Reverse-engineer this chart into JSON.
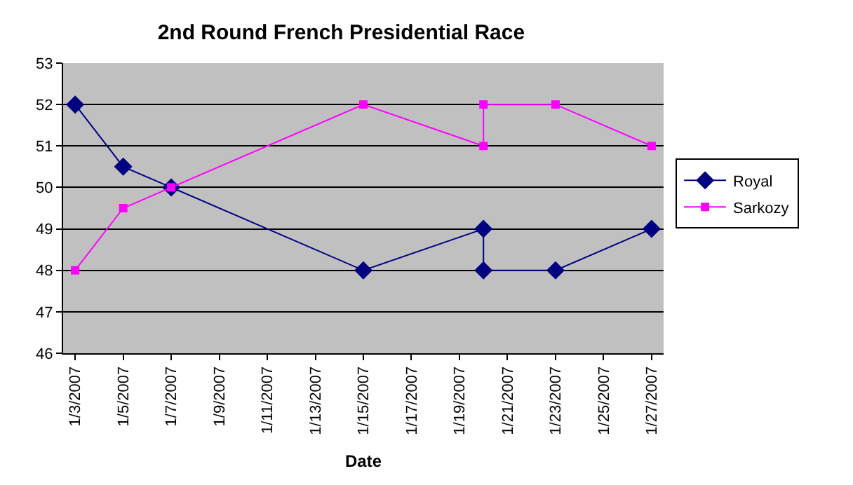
{
  "chart_data": {
    "type": "line",
    "title": "2nd Round French Presidential Race",
    "xlabel": "Date",
    "x": [
      "2007-01-03",
      "2007-01-05",
      "2007-01-07",
      "2007-01-15",
      "2007-01-20",
      "2007-01-20",
      "2007-01-23",
      "2007-01-27"
    ],
    "series": [
      {
        "name": "Royal",
        "color": "#000080",
        "marker": "diamond",
        "values": [
          52,
          50.5,
          50,
          48,
          49,
          48,
          48,
          49
        ]
      },
      {
        "name": "Sarkozy",
        "color": "#ff00ff",
        "marker": "square",
        "values": [
          48,
          49.5,
          50,
          52,
          51,
          52,
          52,
          51
        ]
      }
    ],
    "xlim": [
      "2007-01-02T12:00",
      "2007-01-27T12:00"
    ],
    "xticks": [
      {
        "value": "2007-01-03",
        "label": "1/3/2007"
      },
      {
        "value": "2007-01-05",
        "label": "1/5/2007"
      },
      {
        "value": "2007-01-07",
        "label": "1/7/2007"
      },
      {
        "value": "2007-01-09",
        "label": "1/9/2007"
      },
      {
        "value": "2007-01-11",
        "label": "1/11/2007"
      },
      {
        "value": "2007-01-13",
        "label": "1/13/2007"
      },
      {
        "value": "2007-01-15",
        "label": "1/15/2007"
      },
      {
        "value": "2007-01-17",
        "label": "1/17/2007"
      },
      {
        "value": "2007-01-19",
        "label": "1/19/2007"
      },
      {
        "value": "2007-01-21",
        "label": "1/21/2007"
      },
      {
        "value": "2007-01-23",
        "label": "1/23/2007"
      },
      {
        "value": "2007-01-25",
        "label": "1/25/2007"
      },
      {
        "value": "2007-01-27",
        "label": "1/27/2007"
      }
    ],
    "ylim": [
      46,
      53
    ],
    "yticks": [
      46,
      47,
      48,
      49,
      50,
      51,
      52,
      53
    ],
    "grid": "y",
    "legend": "right",
    "line_style": "solid"
  }
}
